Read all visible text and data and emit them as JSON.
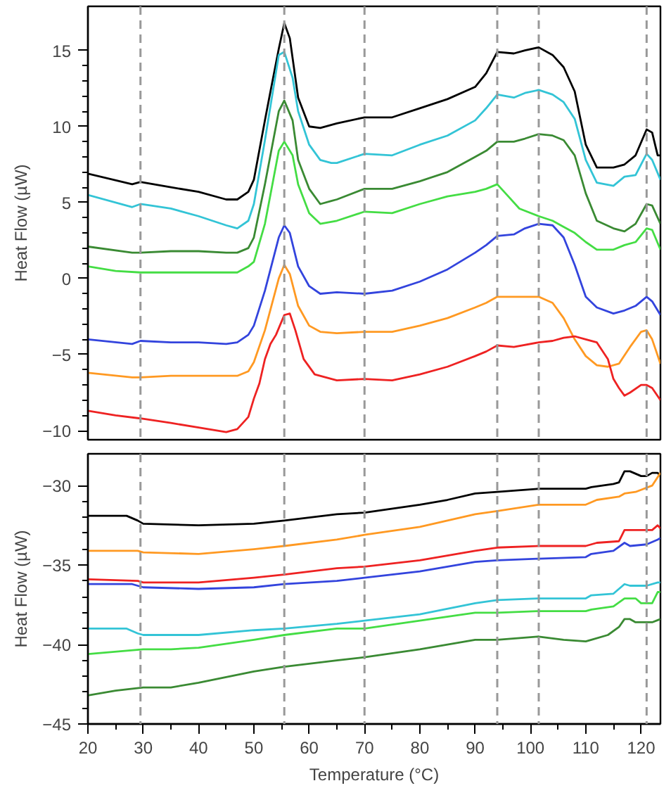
{
  "chart_data": [
    {
      "type": "line",
      "ylabel": "Heat Flow (µW)",
      "xlim": [
        20,
        123.5
      ],
      "xticks": [
        20,
        30,
        40,
        50,
        60,
        70,
        80,
        90,
        100,
        110,
        120
      ],
      "ylim": [
        -10.6,
        17.9
      ],
      "yticks": [
        -10,
        -5,
        0,
        5,
        10,
        15
      ],
      "tick_labels": "y",
      "line_style": "solid",
      "ref_lines": [
        {
          "axis": "x",
          "value": 29.5,
          "color": "#999999",
          "line_style": "dashed"
        },
        {
          "axis": "x",
          "value": 55.5,
          "color": "#999999",
          "line_style": "dashed"
        },
        {
          "axis": "x",
          "value": 70,
          "color": "#999999",
          "line_style": "dashed"
        },
        {
          "axis": "x",
          "value": 94,
          "color": "#999999",
          "line_style": "dashed"
        },
        {
          "axis": "x",
          "value": 101.5,
          "color": "#999999",
          "line_style": "dashed"
        },
        {
          "axis": "x",
          "value": 121,
          "color": "#999999",
          "line_style": "dashed"
        }
      ],
      "series": [
        {
          "color": "#000000",
          "x": [
            20,
            28,
            29.5,
            35,
            40,
            45,
            47,
            49,
            50,
            52,
            53,
            54.5,
            55.5,
            56.5,
            58,
            60,
            62,
            65,
            70,
            75,
            80,
            85,
            90,
            92,
            94,
            97,
            99,
            101.5,
            104,
            106,
            108,
            110,
            112,
            115,
            117,
            119,
            121,
            122,
            123,
            123.5
          ],
          "values": [
            6.9,
            6.2,
            6.35,
            6.0,
            5.7,
            5.2,
            5.2,
            5.7,
            6.5,
            10.4,
            12.3,
            15.1,
            16.8,
            15.8,
            11.9,
            10.0,
            9.9,
            10.2,
            10.6,
            10.6,
            11.2,
            11.8,
            12.6,
            13.5,
            14.9,
            14.8,
            15.0,
            15.2,
            14.7,
            13.9,
            12.3,
            8.8,
            7.3,
            7.3,
            7.5,
            8.1,
            9.8,
            9.6,
            8.1,
            8.1
          ]
        },
        {
          "color": "#33c4d6",
          "x": [
            20,
            28,
            29.5,
            35,
            40,
            45,
            47,
            49,
            50,
            52,
            54.5,
            55.5,
            57,
            58,
            60,
            62,
            64,
            65,
            70,
            75,
            80,
            85,
            90,
            92,
            94,
            97,
            99,
            101.5,
            104,
            106,
            108,
            110,
            112,
            115,
            117,
            119,
            121,
            122,
            123.5
          ],
          "values": [
            5.5,
            4.7,
            4.9,
            4.6,
            4.1,
            3.5,
            3.3,
            3.8,
            4.9,
            9.1,
            14.7,
            14.9,
            13.2,
            11.0,
            8.8,
            7.8,
            7.6,
            7.6,
            8.2,
            8.1,
            8.8,
            9.4,
            10.4,
            11.2,
            12.1,
            11.9,
            12.2,
            12.4,
            12.1,
            11.6,
            10.5,
            7.8,
            6.3,
            6.1,
            6.7,
            6.8,
            8.2,
            7.8,
            6.5
          ]
        },
        {
          "color": "#3a8a33",
          "x": [
            20,
            28,
            29.5,
            35,
            40,
            45,
            47,
            49,
            50,
            52,
            54.5,
            55.5,
            57,
            58,
            60,
            62,
            64,
            65,
            70,
            75,
            80,
            85,
            90,
            92,
            94,
            97,
            99,
            101.5,
            104,
            106,
            108,
            110,
            112,
            115,
            117,
            119,
            121,
            122,
            123.5
          ],
          "values": [
            2.1,
            1.7,
            1.7,
            1.8,
            1.8,
            1.7,
            1.7,
            2.0,
            2.7,
            6.2,
            11.0,
            11.7,
            10.4,
            7.8,
            5.9,
            4.9,
            5.1,
            5.2,
            5.9,
            5.9,
            6.4,
            7.0,
            8.0,
            8.4,
            9.0,
            9.0,
            9.2,
            9.5,
            9.4,
            9.1,
            8.1,
            5.6,
            3.8,
            3.3,
            3.1,
            3.6,
            4.9,
            4.8,
            3.6
          ]
        },
        {
          "color": "#44dd44",
          "x": [
            20,
            25,
            29.5,
            35,
            40,
            45,
            47,
            49,
            50,
            52,
            54.5,
            55.5,
            57,
            58,
            60,
            62,
            65,
            70,
            75,
            80,
            85,
            90,
            92,
            94,
            96,
            98,
            101.5,
            104,
            106,
            108,
            110,
            112,
            115,
            117,
            119,
            121,
            122,
            123.5
          ],
          "values": [
            0.8,
            0.5,
            0.4,
            0.4,
            0.4,
            0.4,
            0.4,
            0.8,
            1.1,
            3.6,
            8.4,
            9.0,
            8.1,
            6.2,
            4.3,
            3.6,
            3.8,
            4.4,
            4.3,
            4.9,
            5.4,
            5.7,
            5.9,
            6.2,
            5.4,
            4.6,
            4.1,
            3.8,
            3.4,
            3.0,
            2.4,
            1.9,
            1.9,
            2.2,
            2.4,
            3.3,
            3.2,
            1.9
          ]
        },
        {
          "color": "#3344dd",
          "x": [
            20,
            28,
            29.5,
            35,
            40,
            45,
            47,
            49,
            50,
            52,
            54.5,
            55.5,
            56.5,
            58,
            60,
            62,
            65,
            70,
            75,
            80,
            85,
            90,
            92,
            94,
            97,
            99,
            101.5,
            104,
            106,
            108,
            110,
            112,
            115,
            117,
            119,
            121,
            122,
            123.5
          ],
          "values": [
            -4.0,
            -4.3,
            -4.1,
            -4.2,
            -4.2,
            -4.3,
            -4.2,
            -3.7,
            -3.1,
            -0.8,
            2.7,
            3.5,
            3.0,
            0.8,
            -0.5,
            -1.0,
            -0.9,
            -1.0,
            -0.8,
            -0.2,
            0.6,
            1.7,
            2.2,
            2.8,
            2.9,
            3.3,
            3.6,
            3.5,
            2.7,
            0.9,
            -1.2,
            -1.9,
            -2.3,
            -2.1,
            -1.8,
            -1.2,
            -1.5,
            -2.4
          ]
        },
        {
          "color": "#ff9922",
          "x": [
            20,
            28,
            29.5,
            35,
            40,
            45,
            47,
            49,
            50,
            52,
            54.5,
            55.5,
            56.5,
            58,
            60,
            62,
            65,
            70,
            75,
            80,
            85,
            90,
            92,
            94,
            97,
            101.5,
            104,
            106,
            108,
            110,
            112,
            114,
            116,
            118,
            120,
            121,
            122,
            123.5
          ],
          "values": [
            -6.2,
            -6.5,
            -6.5,
            -6.4,
            -6.4,
            -6.4,
            -6.4,
            -6.1,
            -5.5,
            -3.4,
            0.0,
            0.9,
            0.3,
            -1.8,
            -3.1,
            -3.5,
            -3.6,
            -3.5,
            -3.5,
            -3.1,
            -2.6,
            -1.9,
            -1.6,
            -1.2,
            -1.2,
            -1.2,
            -1.6,
            -2.6,
            -4.0,
            -5.1,
            -5.7,
            -5.8,
            -5.6,
            -4.5,
            -3.5,
            -3.4,
            -4.0,
            -5.6
          ]
        },
        {
          "color": "#ee2222",
          "x": [
            20,
            25,
            29.5,
            35,
            40,
            45,
            47,
            49,
            50,
            51,
            52,
            53,
            54,
            55.5,
            56.5,
            57.5,
            59,
            61,
            65,
            70,
            75,
            80,
            85,
            90,
            92,
            94,
            97,
            101.5,
            104,
            106,
            108,
            110,
            112,
            114,
            115,
            116,
            117,
            118,
            120,
            121,
            122,
            123.5
          ],
          "values": [
            -8.7,
            -9.0,
            -9.2,
            -9.5,
            -9.8,
            -10.1,
            -9.9,
            -9.1,
            -7.9,
            -6.9,
            -5.3,
            -4.3,
            -3.7,
            -2.4,
            -2.3,
            -3.4,
            -5.3,
            -6.3,
            -6.7,
            -6.6,
            -6.7,
            -6.3,
            -5.8,
            -5.1,
            -4.8,
            -4.4,
            -4.5,
            -4.2,
            -4.1,
            -3.9,
            -3.8,
            -4.0,
            -4.2,
            -5.3,
            -6.6,
            -7.2,
            -7.7,
            -7.5,
            -7.0,
            -7.0,
            -7.2,
            -8.0
          ]
        }
      ]
    },
    {
      "type": "line",
      "xlabel": "Temperature (°C)",
      "ylabel": "Heat Flow (µW)",
      "xlim": [
        20,
        123.5
      ],
      "xticks": [
        20,
        30,
        40,
        50,
        60,
        70,
        80,
        90,
        100,
        110,
        120
      ],
      "ylim": [
        -45,
        -28
      ],
      "yticks": [
        -45,
        -40,
        -35,
        -30
      ],
      "line_style": "solid",
      "ref_lines": [
        {
          "axis": "x",
          "value": 29.5,
          "color": "#999999",
          "line_style": "dashed"
        },
        {
          "axis": "x",
          "value": 55.5,
          "color": "#999999",
          "line_style": "dashed"
        },
        {
          "axis": "x",
          "value": 70,
          "color": "#999999",
          "line_style": "dashed"
        },
        {
          "axis": "x",
          "value": 94,
          "color": "#999999",
          "line_style": "dashed"
        },
        {
          "axis": "x",
          "value": 101.5,
          "color": "#999999",
          "line_style": "dashed"
        },
        {
          "axis": "x",
          "value": 121,
          "color": "#999999",
          "line_style": "dashed"
        }
      ],
      "series": [
        {
          "color": "#000000",
          "x": [
            20,
            27,
            29,
            30,
            40,
            50,
            55.5,
            65,
            70,
            80,
            85,
            90,
            94,
            101.5,
            110,
            111,
            115,
            116,
            117,
            118,
            120,
            121,
            122,
            123,
            123.5
          ],
          "values": [
            -31.9,
            -31.9,
            -32.2,
            -32.4,
            -32.5,
            -32.4,
            -32.2,
            -31.8,
            -31.7,
            -31.2,
            -30.9,
            -30.5,
            -30.4,
            -30.2,
            -30.2,
            -30.1,
            -29.9,
            -29.8,
            -29.1,
            -29.1,
            -29.4,
            -29.4,
            -29.2,
            -29.2,
            -29.4
          ]
        },
        {
          "color": "#ff9922",
          "x": [
            20,
            29,
            30,
            40,
            50,
            55.5,
            65,
            70,
            80,
            90,
            94,
            101.5,
            110,
            112,
            116,
            117,
            119,
            122,
            123.5
          ],
          "values": [
            -34.1,
            -34.1,
            -34.2,
            -34.3,
            -34.0,
            -33.8,
            -33.4,
            -33.1,
            -32.6,
            -31.8,
            -31.6,
            -31.2,
            -31.2,
            -30.9,
            -30.7,
            -30.5,
            -30.4,
            -30.0,
            -29.2
          ]
        },
        {
          "color": "#ee2222",
          "x": [
            20,
            29,
            30,
            40,
            50,
            55.5,
            65,
            70,
            80,
            90,
            94,
            101.5,
            110,
            112,
            116,
            117,
            120,
            122,
            123,
            123.5
          ],
          "values": [
            -35.9,
            -36.0,
            -36.1,
            -36.1,
            -35.8,
            -35.6,
            -35.2,
            -35.1,
            -34.7,
            -34.1,
            -33.9,
            -33.8,
            -33.8,
            -33.6,
            -33.5,
            -32.8,
            -32.8,
            -32.8,
            -32.5,
            -32.7
          ]
        },
        {
          "color": "#3344dd",
          "x": [
            20,
            28,
            30,
            40,
            50,
            55.5,
            65,
            70,
            80,
            90,
            94,
            101.5,
            110,
            111,
            115,
            117,
            118,
            121,
            123,
            123.5
          ],
          "values": [
            -36.2,
            -36.2,
            -36.4,
            -36.5,
            -36.4,
            -36.2,
            -36.0,
            -35.8,
            -35.4,
            -34.8,
            -34.7,
            -34.6,
            -34.5,
            -34.3,
            -34.1,
            -33.6,
            -33.8,
            -33.7,
            -33.4,
            -33.3
          ]
        },
        {
          "color": "#33c4d6",
          "x": [
            20,
            27,
            29,
            30,
            40,
            50,
            55.5,
            65,
            70,
            80,
            90,
            94,
            101.5,
            110,
            111,
            115,
            117,
            118,
            121,
            123,
            123.5
          ],
          "values": [
            -39.0,
            -39.0,
            -39.3,
            -39.4,
            -39.4,
            -39.1,
            -39.0,
            -38.7,
            -38.5,
            -38.1,
            -37.4,
            -37.2,
            -37.1,
            -37.1,
            -36.9,
            -36.8,
            -36.2,
            -36.3,
            -36.3,
            -36.1,
            -36.1
          ]
        },
        {
          "color": "#44dd44",
          "x": [
            20,
            30,
            35,
            40,
            50,
            55.5,
            65,
            70,
            80,
            90,
            94,
            101.5,
            110,
            111,
            115,
            117,
            119,
            120,
            122,
            123,
            123.5
          ],
          "values": [
            -40.6,
            -40.3,
            -40.3,
            -40.2,
            -39.7,
            -39.4,
            -39.0,
            -39.0,
            -38.5,
            -38.0,
            -38.0,
            -37.9,
            -37.9,
            -37.8,
            -37.6,
            -37.1,
            -37.1,
            -37.4,
            -37.4,
            -36.7,
            -36.7
          ]
        },
        {
          "color": "#3a8a33",
          "x": [
            20,
            25,
            30,
            35,
            40,
            50,
            55.5,
            65,
            70,
            80,
            90,
            94,
            101.5,
            106,
            110,
            111,
            114,
            116,
            117,
            118,
            119,
            122,
            123.5
          ],
          "values": [
            -43.2,
            -42.9,
            -42.7,
            -42.7,
            -42.4,
            -41.7,
            -41.4,
            -41.0,
            -40.8,
            -40.3,
            -39.7,
            -39.7,
            -39.5,
            -39.7,
            -39.8,
            -39.7,
            -39.4,
            -38.9,
            -38.4,
            -38.4,
            -38.6,
            -38.6,
            -38.4
          ]
        }
      ]
    }
  ]
}
